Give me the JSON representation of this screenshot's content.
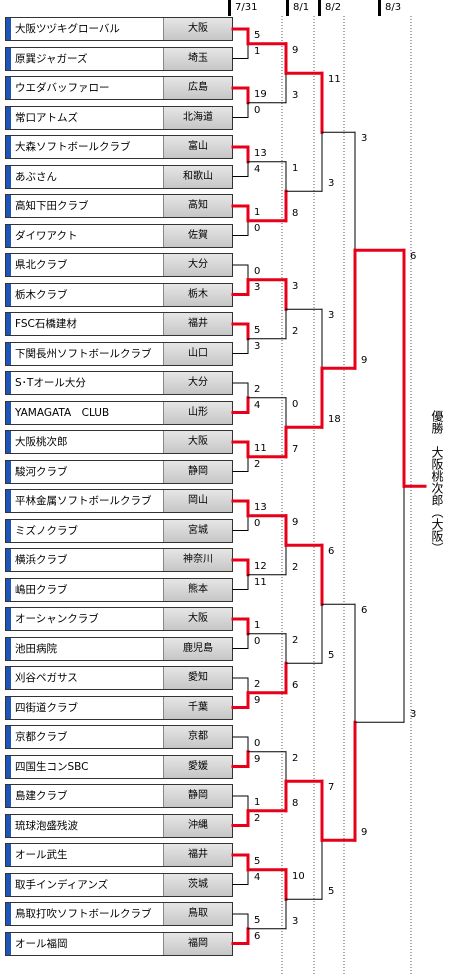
{
  "dates": [
    "7/31",
    "8/1",
    "8/2",
    "8/3"
  ],
  "teams": [
    {
      "name": "大阪ツヅキグローバル",
      "pref": "大阪"
    },
    {
      "name": "原巽ジャガーズ",
      "pref": "埼玉"
    },
    {
      "name": "ウエダバッファロー",
      "pref": "広島"
    },
    {
      "name": "常口アトムズ",
      "pref": "北海道"
    },
    {
      "name": "大森ソフトボールクラブ",
      "pref": "富山"
    },
    {
      "name": "あぶさん",
      "pref": "和歌山"
    },
    {
      "name": "高知下田クラブ",
      "pref": "高知"
    },
    {
      "name": "ダイワアクト",
      "pref": "佐賀"
    },
    {
      "name": "県北クラブ",
      "pref": "大分"
    },
    {
      "name": "栃木クラブ",
      "pref": "栃木"
    },
    {
      "name": "FSC石橋建材",
      "pref": "福井"
    },
    {
      "name": "下関長州ソフトボールクラブ",
      "pref": "山口"
    },
    {
      "name": "S･Tオール大分",
      "pref": "大分"
    },
    {
      "name": "YAMAGATA　CLUB",
      "pref": "山形"
    },
    {
      "name": "大阪桃次郎",
      "pref": "大阪"
    },
    {
      "name": "駿河クラブ",
      "pref": "静岡"
    },
    {
      "name": "平林金属ソフトボールクラブ",
      "pref": "岡山"
    },
    {
      "name": "ミズノクラブ",
      "pref": "宮城"
    },
    {
      "name": "横浜クラブ",
      "pref": "神奈川"
    },
    {
      "name": "嶋田クラブ",
      "pref": "熊本"
    },
    {
      "name": "オーシャンクラブ",
      "pref": "大阪"
    },
    {
      "name": "池田病院",
      "pref": "鹿児島"
    },
    {
      "name": "刈谷ペガサス",
      "pref": "愛知"
    },
    {
      "name": "四街道クラブ",
      "pref": "千葉"
    },
    {
      "name": "京都クラブ",
      "pref": "京都"
    },
    {
      "name": "四国生コンSBC",
      "pref": "愛媛"
    },
    {
      "name": "島建クラブ",
      "pref": "静岡"
    },
    {
      "name": "琉球泡盛残波",
      "pref": "沖縄"
    },
    {
      "name": "オール武生",
      "pref": "福井"
    },
    {
      "name": "取手インディアンズ",
      "pref": "茨城"
    },
    {
      "name": "鳥取打吹ソフトボールクラブ",
      "pref": "鳥取"
    },
    {
      "name": "オール福岡",
      "pref": "福岡"
    }
  ],
  "round1": [
    {
      "scores": [
        "5",
        "1"
      ],
      "winner": 0
    },
    {
      "scores": [
        "19",
        "0"
      ],
      "winner": 0
    },
    {
      "scores": [
        "13",
        "4"
      ],
      "winner": 0
    },
    {
      "scores": [
        "1",
        "0"
      ],
      "winner": 0
    },
    {
      "scores": [
        "0",
        "3"
      ],
      "winner": 1
    },
    {
      "scores": [
        "5",
        "3"
      ],
      "winner": 0
    },
    {
      "scores": [
        "2",
        "4"
      ],
      "winner": 1
    },
    {
      "scores": [
        "11",
        "2"
      ],
      "winner": 0
    },
    {
      "scores": [
        "13",
        "0"
      ],
      "winner": 0
    },
    {
      "scores": [
        "12",
        "11"
      ],
      "winner": 0
    },
    {
      "scores": [
        "1",
        "0"
      ],
      "winner": 0
    },
    {
      "scores": [
        "2",
        "9"
      ],
      "winner": 1
    },
    {
      "scores": [
        "0",
        "9"
      ],
      "winner": 1
    },
    {
      "scores": [
        "1",
        "2"
      ],
      "winner": 1
    },
    {
      "scores": [
        "5",
        "4"
      ],
      "winner": 0
    },
    {
      "scores": [
        "5",
        "6"
      ],
      "winner": 1
    }
  ],
  "round2": [
    {
      "scores": [
        "9",
        "3"
      ],
      "winner": 0
    },
    {
      "scores": [
        "1",
        "8"
      ],
      "winner": 1
    },
    {
      "scores": [
        "3",
        "2"
      ],
      "winner": 0
    },
    {
      "scores": [
        "0",
        "7"
      ],
      "winner": 1
    },
    {
      "scores": [
        "9",
        "2"
      ],
      "winner": 0
    },
    {
      "scores": [
        "2",
        "6"
      ],
      "winner": 1
    },
    {
      "scores": [
        "2",
        "8"
      ],
      "winner": 1
    },
    {
      "scores": [
        "10",
        "3"
      ],
      "winner": 0
    }
  ],
  "round3": [
    {
      "scores": [
        "11",
        "3"
      ],
      "winner": 0
    },
    {
      "scores": [
        "3",
        "18"
      ],
      "winner": 1
    },
    {
      "scores": [
        "6",
        "5"
      ],
      "winner": 0
    },
    {
      "scores": [
        "7",
        "5"
      ],
      "winner": 0
    }
  ],
  "round4": [
    {
      "scores": [
        "3",
        "9"
      ],
      "winner": 1
    },
    {
      "scores": [
        "6",
        "9"
      ],
      "winner": 1
    }
  ],
  "round5": [
    {
      "scores": [
        "6",
        "3"
      ],
      "winner": 0
    }
  ],
  "champion": {
    "label": "優勝",
    "name": "大阪桃次郎",
    "pref": "（大阪）"
  },
  "colors": {
    "win": "#e8001a",
    "lose": "#000000",
    "accent": "#1e56b8",
    "divider": "#555555"
  }
}
